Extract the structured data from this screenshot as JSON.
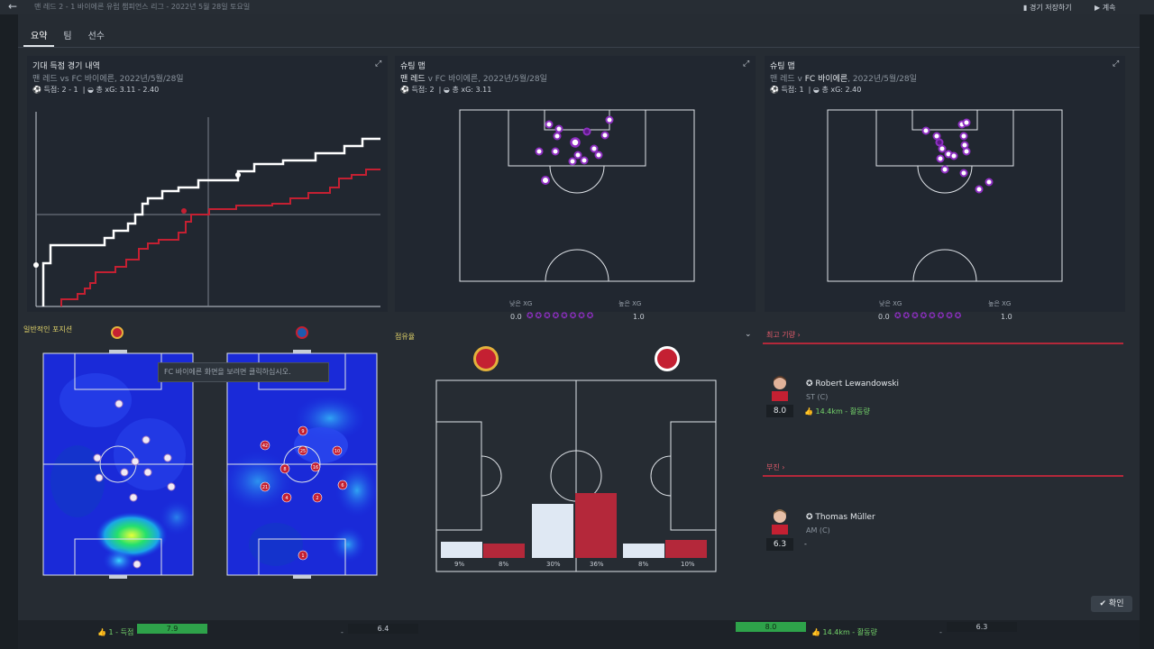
{
  "background": {
    "breadcrumb": "맨 레드 2 - 1 바이에른 유럽 챔피언스 리그 - 2022년 5월 28일 토요일",
    "save_label": "경기 저장하기",
    "next_label": "계속"
  },
  "tabs": [
    "요약",
    "팀",
    "선수"
  ],
  "xg_timeline": {
    "title": "기대 득점 경기 내역",
    "subtitle": "맨 레드 vs FC 바이에른, 2022년/5월/28일",
    "goals": "득점: 2 - 1",
    "total_xg": "총 xG: 3.11 - 2.40"
  },
  "shot_map_home": {
    "title": "슈팅 맵",
    "team": "맨 레드",
    "subtitle_rest": " v FC 바이에른, 2022년/5월/28일",
    "goals": "득점: 2",
    "total_xg": "총 xG: 3.11",
    "low_label": "낮은 XG",
    "high_label": "높은 XG",
    "low_value": "0.0",
    "high_value": "1.0"
  },
  "shot_map_away": {
    "title": "슈팅 맵",
    "team_prefix": "맨 레드 v ",
    "team": "FC 바이에른",
    "subtitle_rest": ", 2022년/5월/28일",
    "goals": "득점: 1",
    "total_xg": "총 xG: 2.40",
    "low_label": "낮은 XG",
    "high_label": "높은 XG",
    "low_value": "0.0",
    "high_value": "1.0"
  },
  "positions": {
    "title": "일반적인 포지션",
    "tooltip": "FC 바이에른 화면을 보려면 클릭하십시오.",
    "away_numbers": [
      "9",
      "42",
      "25",
      "10",
      "8",
      "16",
      "21",
      "6",
      "4",
      "2",
      "1"
    ]
  },
  "possession": {
    "title": "점유율",
    "home_values": [
      "9%",
      "30%",
      "8%"
    ],
    "away_values": [
      "8%",
      "36%",
      "10%"
    ]
  },
  "best_performance": {
    "title": "최고 기량",
    "player_name": "Robert Lewandowski",
    "player_pos": "ST (C)",
    "rating": "8.0",
    "stat": "14.4km - 활동량"
  },
  "poor_performance": {
    "title": "부진",
    "player_name": "Thomas Müller",
    "player_pos": "AM (C)",
    "rating": "6.3",
    "stat": "-"
  },
  "ok_label": "확인",
  "bottom": {
    "left_stat": "1 - 득점",
    "left_rating": "7.9",
    "left_dash": "-",
    "left_rating2": "6.4",
    "right_rating": "8.0",
    "right_stat": "14.4km - 활동량",
    "right_dash": "-",
    "right_rating2": "6.3"
  },
  "colors": {
    "home": "#dfe8f3",
    "away": "#b4283a",
    "accent_yellow": "#e3d56a",
    "shot_purple": "#8e2fc2"
  },
  "icons": [
    "back-arrow-icon",
    "save-icon",
    "next-icon",
    "expand-icon",
    "ball-icon",
    "xg-icon",
    "chevron-right-icon",
    "chevron-down-icon",
    "star-icon",
    "check-icon"
  ]
}
